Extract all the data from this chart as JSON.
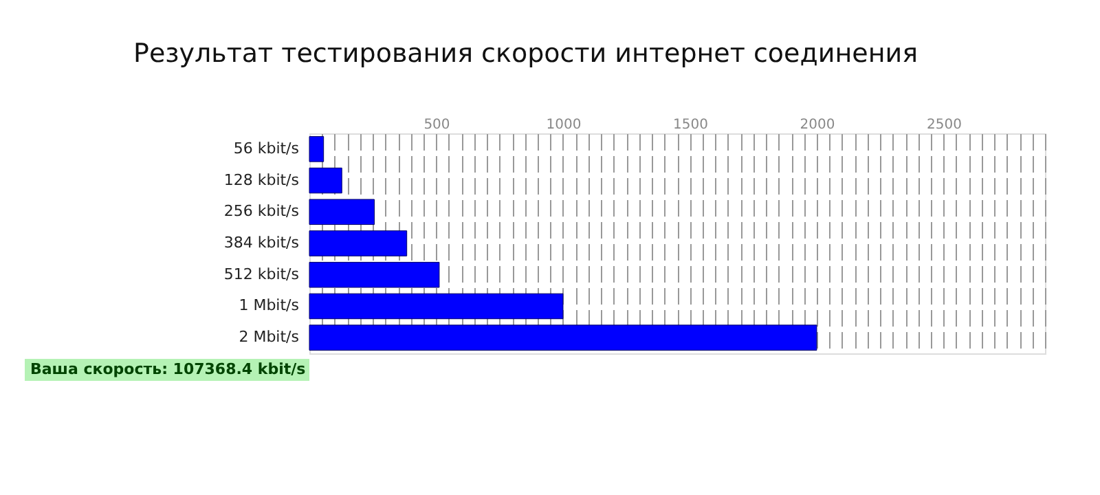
{
  "chart_data": {
    "type": "bar",
    "orientation": "horizontal",
    "title": "Результат тестирования скорости интернет соединения",
    "categories": [
      "56 kbit/s",
      "128 kbit/s",
      "256 kbit/s",
      "384 kbit/s",
      "512 kbit/s",
      "1 Mbit/s",
      "2 Mbit/s"
    ],
    "values": [
      56,
      128,
      256,
      384,
      512,
      1000,
      2000
    ],
    "color": "#0000ff",
    "xlim": [
      0,
      2900
    ],
    "xticks": [
      {
        "value": 50,
        "label": null
      },
      {
        "value": 100,
        "label": null
      },
      {
        "value": 150,
        "label": null
      },
      {
        "value": 200,
        "label": null
      },
      {
        "value": 250,
        "label": null
      },
      {
        "value": 300,
        "label": null
      },
      {
        "value": 350,
        "label": null
      },
      {
        "value": 400,
        "label": null
      },
      {
        "value": 450,
        "label": null
      },
      500,
      {
        "value": 550,
        "label": null
      },
      {
        "value": 600,
        "label": null
      },
      {
        "value": 650,
        "label": null
      },
      {
        "value": 700,
        "label": null
      },
      {
        "value": 750,
        "label": null
      },
      {
        "value": 800,
        "label": null
      },
      {
        "value": 850,
        "label": null
      },
      {
        "value": 900,
        "label": null
      },
      {
        "value": 950,
        "label": null
      },
      1000,
      {
        "value": 1050,
        "label": null
      },
      {
        "value": 1100,
        "label": null
      },
      {
        "value": 1150,
        "label": null
      },
      {
        "value": 1200,
        "label": null
      },
      {
        "value": 1250,
        "label": null
      },
      {
        "value": 1300,
        "label": null
      },
      {
        "value": 1350,
        "label": null
      },
      {
        "value": 1400,
        "label": null
      },
      {
        "value": 1450,
        "label": null
      },
      1500,
      {
        "value": 1550,
        "label": null
      },
      {
        "value": 1600,
        "label": null
      },
      {
        "value": 1650,
        "label": null
      },
      {
        "value": 1700,
        "label": null
      },
      {
        "value": 1750,
        "label": null
      },
      {
        "value": 1800,
        "label": null
      },
      {
        "value": 1850,
        "label": null
      },
      {
        "value": 1900,
        "label": null
      },
      {
        "value": 1950,
        "label": null
      },
      2000,
      {
        "value": 2050,
        "label": null
      },
      {
        "value": 2100,
        "label": null
      },
      {
        "value": 2150,
        "label": null
      },
      {
        "value": 2200,
        "label": null
      },
      {
        "value": 2250,
        "label": null
      },
      {
        "value": 2300,
        "label": null
      },
      {
        "value": 2350,
        "label": null
      },
      {
        "value": 2400,
        "label": null
      },
      {
        "value": 2450,
        "label": null
      },
      2500,
      {
        "value": 2550,
        "label": null
      },
      {
        "value": 2600,
        "label": null
      },
      {
        "value": 2650,
        "label": null
      },
      {
        "value": 2700,
        "label": null
      },
      {
        "value": 2750,
        "label": null
      },
      {
        "value": 2800,
        "label": null
      },
      {
        "value": 2850,
        "label": null
      },
      {
        "value": 2900,
        "label": null
      }
    ],
    "grid": true,
    "annotations": [
      "Ваша скорость: 107368.4 kbit/s"
    ]
  }
}
